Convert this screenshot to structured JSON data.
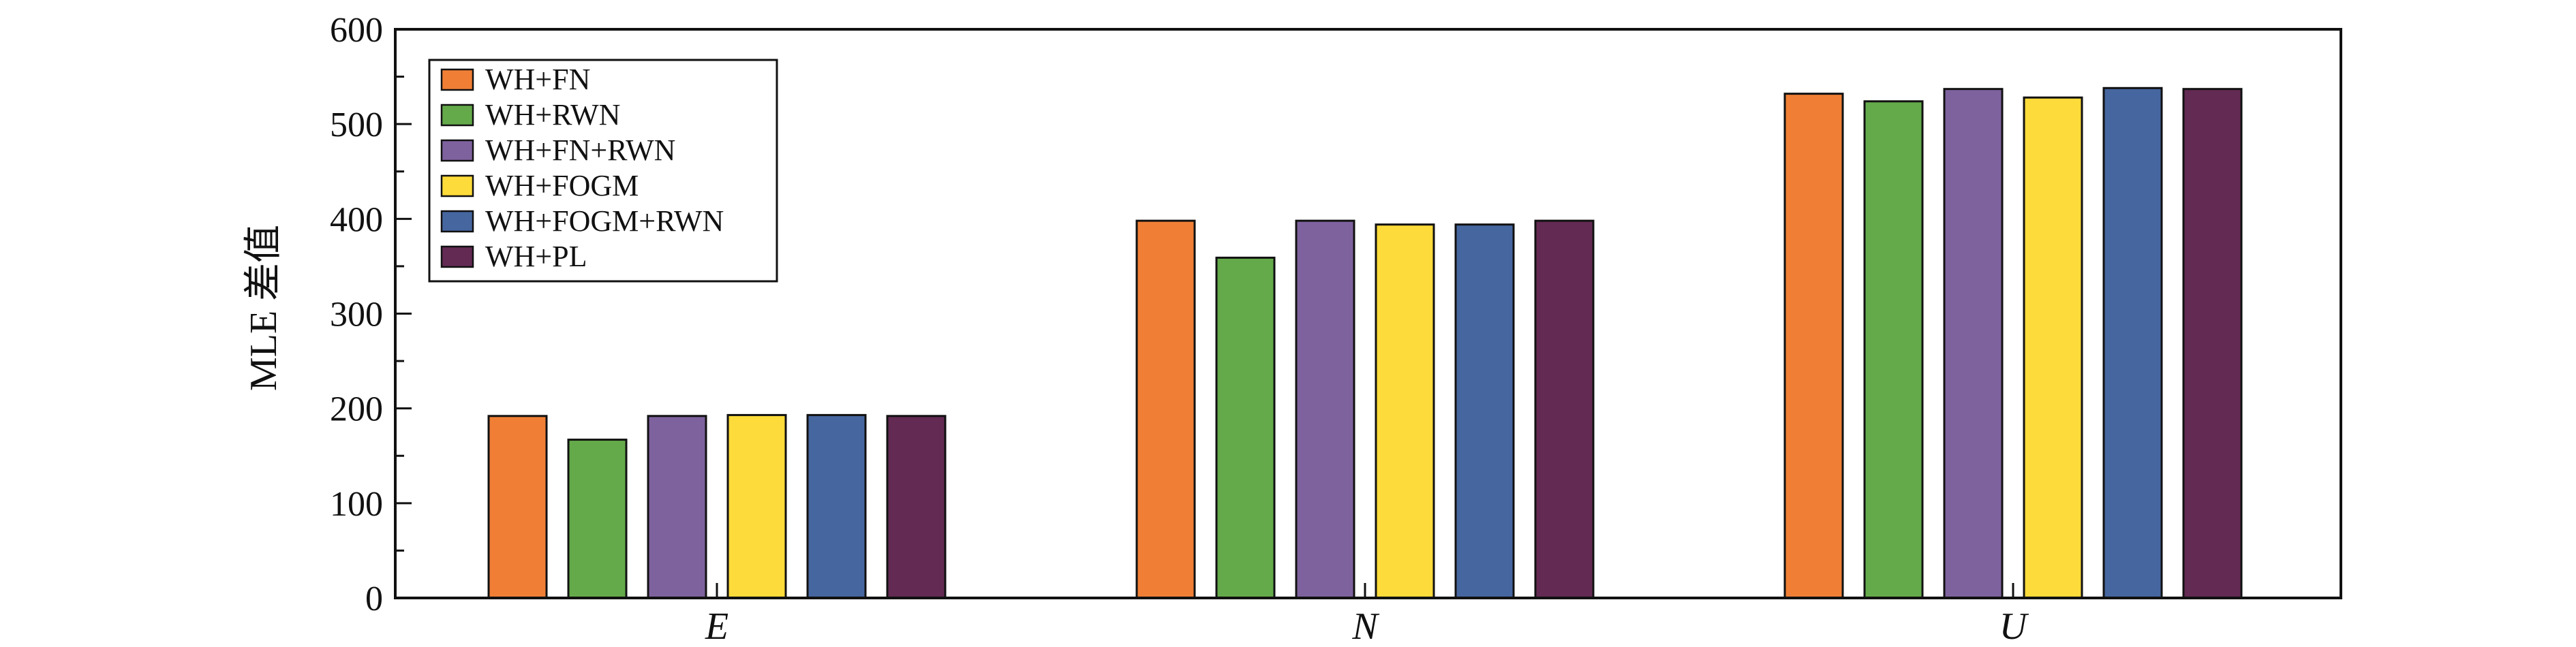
{
  "chart_data": {
    "type": "bar",
    "categories": [
      "E",
      "N",
      "U"
    ],
    "series": [
      {
        "name": "WH+FN",
        "color": "#F07F35",
        "values": [
          192,
          398,
          532
        ]
      },
      {
        "name": "WH+RWN",
        "color": "#64AA4A",
        "values": [
          167,
          359,
          524
        ]
      },
      {
        "name": "WH+FN+RWN",
        "color": "#7E629E",
        "values": [
          192,
          398,
          537
        ]
      },
      {
        "name": "WH+FOGM",
        "color": "#FDDB3A",
        "values": [
          193,
          394,
          528
        ]
      },
      {
        "name": "WH+FOGM+RWN",
        "color": "#46669F",
        "values": [
          193,
          394,
          538
        ]
      },
      {
        "name": "WH+PL",
        "color": "#632A53",
        "values": [
          192,
          398,
          537
        ]
      }
    ],
    "ylabel": "MLE 差值",
    "xlabel": "",
    "ylim": [
      0,
      600
    ],
    "yticks": [
      0,
      100,
      200,
      300,
      400,
      500,
      600
    ],
    "grid": false,
    "legend_position": "top-left"
  }
}
